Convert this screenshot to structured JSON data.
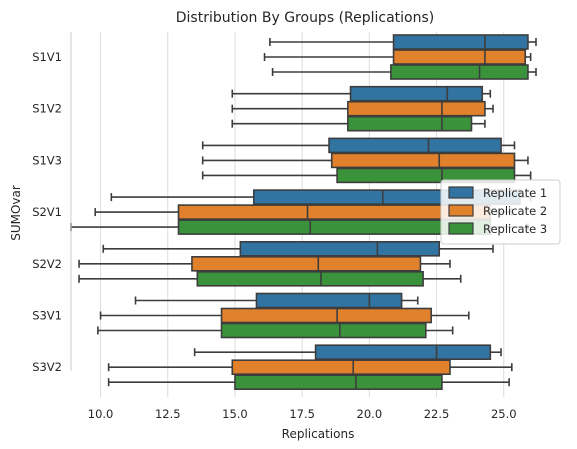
{
  "chart_data": {
    "type": "boxplot",
    "orientation": "horizontal",
    "title": "Distribution By Groups (Replications)",
    "xlabel": "Replications",
    "ylabel": "SUMOvar",
    "xlim": [
      8.9,
      26.2
    ],
    "xticks": [
      10.0,
      12.5,
      15.0,
      17.5,
      20.0,
      22.5,
      25.0
    ],
    "xtick_labels": [
      "10.0",
      "12.5",
      "15.0",
      "17.5",
      "20.0",
      "22.5",
      "25.0"
    ],
    "categories": [
      "S1V1",
      "S1V2",
      "S1V3",
      "S2V1",
      "S2V2",
      "S3V1",
      "S3V2"
    ],
    "grid": "vertical",
    "legend_position": "center-right",
    "series": [
      {
        "name": "Replicate 1",
        "color": "#3274a1",
        "boxes": [
          {
            "min": 16.3,
            "q1": 20.9,
            "median": 24.3,
            "q3": 25.9,
            "max": 26.2
          },
          {
            "min": 14.9,
            "q1": 19.3,
            "median": 22.9,
            "q3": 24.2,
            "max": 24.5
          },
          {
            "min": 13.8,
            "q1": 18.5,
            "median": 22.2,
            "q3": 24.9,
            "max": 25.4
          },
          {
            "min": 10.4,
            "q1": 15.7,
            "median": 20.5,
            "q3": 25.6,
            "max": 26.0
          },
          {
            "min": 10.1,
            "q1": 15.2,
            "median": 20.3,
            "q3": 22.6,
            "max": 24.6
          },
          {
            "min": 11.3,
            "q1": 15.8,
            "median": 20.0,
            "q3": 21.2,
            "max": 21.8
          },
          {
            "min": 13.5,
            "q1": 18.0,
            "median": 22.5,
            "q3": 24.5,
            "max": 24.9
          }
        ]
      },
      {
        "name": "Replicate 2",
        "color": "#e1812c",
        "boxes": [
          {
            "min": 16.1,
            "q1": 20.9,
            "median": 24.3,
            "q3": 25.8,
            "max": 26.0
          },
          {
            "min": 14.9,
            "q1": 19.2,
            "median": 22.7,
            "q3": 24.3,
            "max": 24.6
          },
          {
            "min": 13.8,
            "q1": 18.6,
            "median": 22.6,
            "q3": 25.4,
            "max": 25.9
          },
          {
            "min": 9.8,
            "q1": 12.9,
            "median": 17.7,
            "q3": 24.5,
            "max": 25.3
          },
          {
            "min": 9.2,
            "q1": 13.4,
            "median": 18.1,
            "q3": 21.9,
            "max": 23.0
          },
          {
            "min": 10.0,
            "q1": 14.5,
            "median": 18.8,
            "q3": 22.3,
            "max": 23.7
          },
          {
            "min": 10.3,
            "q1": 14.9,
            "median": 19.4,
            "q3": 23.0,
            "max": 25.3
          }
        ]
      },
      {
        "name": "Replicate 3",
        "color": "#3a923a",
        "boxes": [
          {
            "min": 16.4,
            "q1": 20.8,
            "median": 24.1,
            "q3": 25.9,
            "max": 26.2
          },
          {
            "min": 14.9,
            "q1": 19.2,
            "median": 22.7,
            "q3": 23.8,
            "max": 24.3
          },
          {
            "min": 13.8,
            "q1": 18.8,
            "median": 22.7,
            "q3": 25.4,
            "max": 26.0
          },
          {
            "min": 8.9,
            "q1": 12.9,
            "median": 17.8,
            "q3": 24.5,
            "max": 25.9
          },
          {
            "min": 9.2,
            "q1": 13.6,
            "median": 18.2,
            "q3": 22.0,
            "max": 23.4
          },
          {
            "min": 9.9,
            "q1": 14.5,
            "median": 18.9,
            "q3": 22.1,
            "max": 23.1
          },
          {
            "min": 10.3,
            "q1": 15.0,
            "median": 19.5,
            "q3": 22.7,
            "max": 25.2
          }
        ]
      }
    ]
  }
}
